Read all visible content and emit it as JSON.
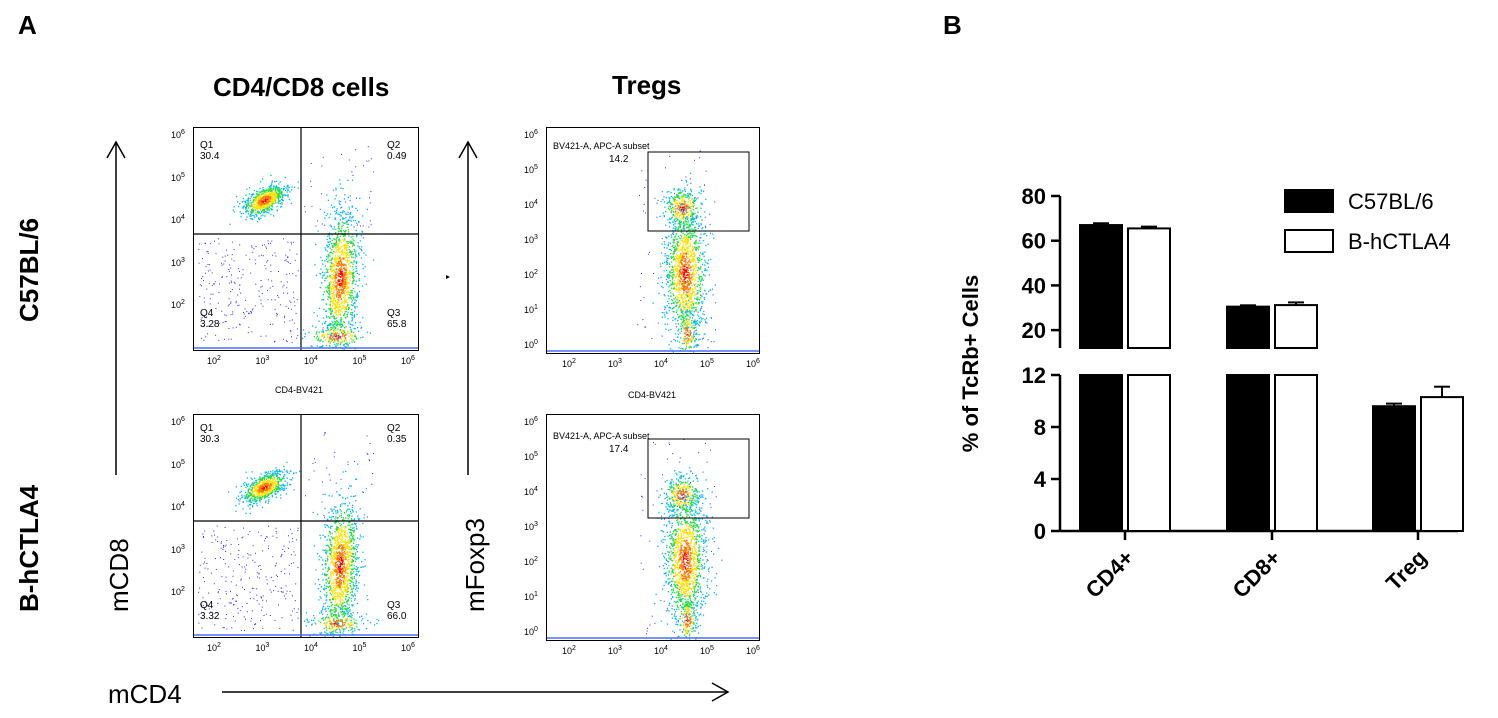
{
  "panels": {
    "a_letter": "A",
    "b_letter": "B"
  },
  "flow": {
    "col1_title": "CD4/CD8 cells",
    "col2_title": "Tregs",
    "row1_label": "C57BL/6",
    "row2_label": "B-hCTLA4",
    "y_axis_cd8": "mCD8",
    "y_axis_foxp3": "mFoxp3",
    "x_axis": "mCD4",
    "x_tick_labels": [
      "10",
      "10",
      "10",
      "10",
      "10"
    ],
    "x_tick_exps": [
      "2",
      "3",
      "4",
      "5",
      "6"
    ],
    "y_tick_labels": [
      "10",
      "10",
      "10",
      "10",
      "10",
      "10",
      "10"
    ],
    "y_tick_exps": [
      "6",
      "5",
      "4",
      "3",
      "2",
      "1",
      "0"
    ],
    "plot_xlabel": "CD4-BV421",
    "gate_label": "BV421-A, APC-A subset",
    "cd4cd8_row1": {
      "q1": "Q1",
      "q1_val": "30.4",
      "q2": "Q2",
      "q2_val": "0.49",
      "q3": "Q3",
      "q3_val": "65.8",
      "q4": "Q4",
      "q4_val": "3.28"
    },
    "cd4cd8_row2": {
      "q1": "Q1",
      "q1_val": "30.3",
      "q2": "Q2",
      "q2_val": "0.35",
      "q3": "Q3",
      "q3_val": "66.0",
      "q4": "Q4",
      "q4_val": "3.32"
    },
    "treg_row1_val": "14.2",
    "treg_row2_val": "17.4"
  },
  "chart_data": {
    "type": "bar",
    "categories": [
      "CD4+",
      "CD8+",
      "Treg"
    ],
    "ylabel": "% of TcRb+ Cells",
    "axis_break": true,
    "upper_segment": {
      "ylim": [
        12,
        80
      ],
      "ticks": [
        20,
        40,
        60,
        80
      ]
    },
    "lower_segment": {
      "ylim": [
        0,
        12
      ],
      "ticks": [
        0,
        4,
        8,
        12
      ]
    },
    "legend_position": "top-right",
    "series": [
      {
        "name": "C57BL/6",
        "values": [
          67.0,
          30.5,
          9.6
        ],
        "errors": [
          0.8,
          0.6,
          0.2
        ],
        "color": "#000000"
      },
      {
        "name": "B-hCTLA4",
        "values": [
          65.5,
          31.2,
          10.3
        ],
        "errors": [
          0.8,
          1.2,
          0.8
        ],
        "color": "#ffffff"
      }
    ]
  }
}
